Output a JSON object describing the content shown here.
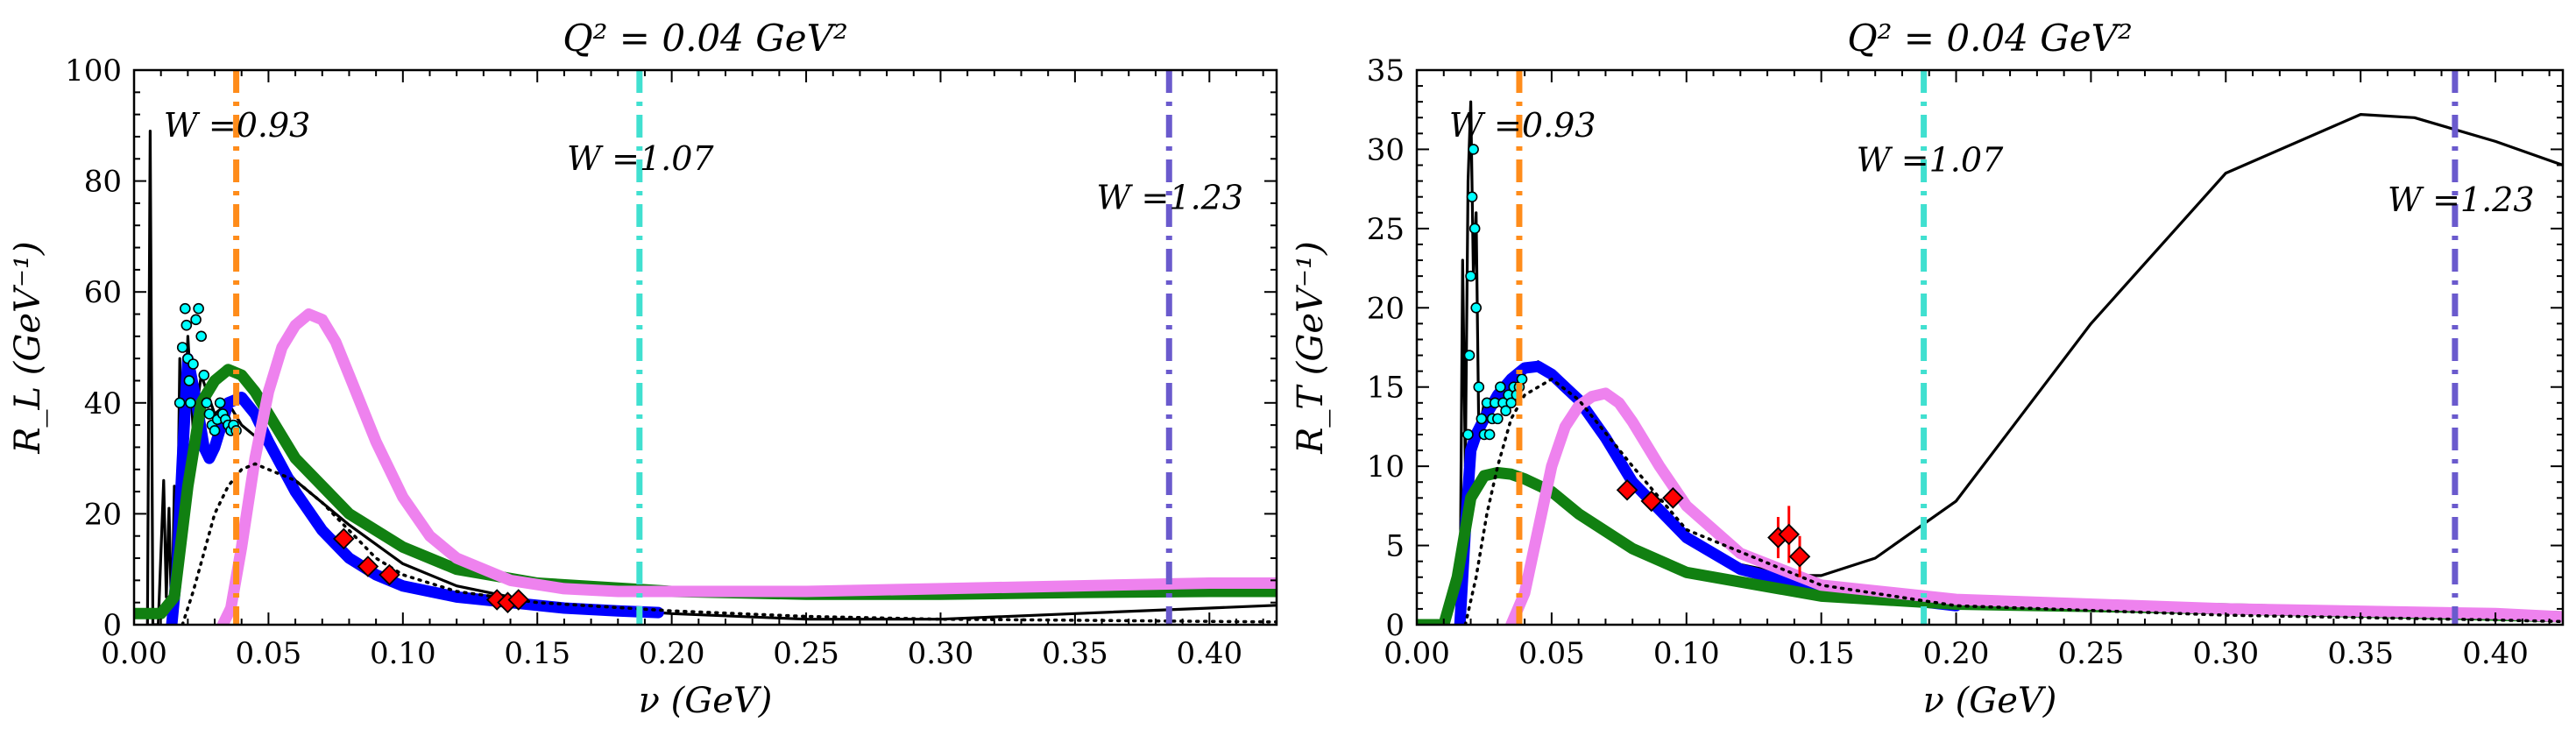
{
  "colors": {
    "orange": "#ff8c1a",
    "turquoise": "#40e0d0",
    "slateblue": "#6a5acd",
    "blue": "#0000ff",
    "green": "#118011",
    "violet": "#ee82ee",
    "cyan_marker": "#00ffff",
    "red_marker": "#ff0000",
    "black": "#000000"
  },
  "chart_data": [
    {
      "type": "line",
      "title": "Q² = 0.04 GeV²",
      "xlabel": "ν (GeV)",
      "ylabel": "R_L (GeV⁻¹)",
      "xlim": [
        0.0,
        0.425
      ],
      "ylim": [
        0,
        100
      ],
      "xticks": [
        0.0,
        0.05,
        0.1,
        0.15,
        0.2,
        0.25,
        0.3,
        0.35,
        0.4
      ],
      "xtick_labels": [
        "0.00",
        "0.05",
        "0.10",
        "0.15",
        "0.20",
        "0.25",
        "0.30",
        "0.35",
        "0.40"
      ],
      "yticks": [
        0,
        20,
        40,
        60,
        80,
        100
      ],
      "ytick_labels": [
        "0",
        "20",
        "40",
        "60",
        "80",
        "100"
      ],
      "vlines": [
        {
          "x": 0.038,
          "color": "orange",
          "label": "W =0.93",
          "label_x": 0.011,
          "label_y": 88
        },
        {
          "x": 0.188,
          "color": "turquoise",
          "label": "W =1.07",
          "label_x": 0.161,
          "label_y": 82
        },
        {
          "x": 0.385,
          "color": "slateblue",
          "label": "W =1.23",
          "label_x": 0.358,
          "label_y": 75
        }
      ],
      "series": [
        {
          "style": "black-thin",
          "x": [
            0.005,
            0.006,
            0.007,
            0.009,
            0.011,
            0.012,
            0.013,
            0.014,
            0.015,
            0.016,
            0.017,
            0.018,
            0.02,
            0.022,
            0.025,
            0.03,
            0.035,
            0.04,
            0.05,
            0.06,
            0.08,
            0.1,
            0.12,
            0.15,
            0.2,
            0.25,
            0.3,
            0.35,
            0.4,
            0.425
          ],
          "y": [
            0,
            89,
            0,
            0,
            26,
            5,
            21,
            0,
            25,
            10,
            48,
            22,
            52,
            35,
            45,
            38,
            40,
            36,
            32,
            26,
            18,
            11,
            7,
            4,
            2,
            1,
            1,
            2,
            3,
            3.5
          ]
        },
        {
          "style": "blue-thick",
          "x": [
            0.014,
            0.016,
            0.018,
            0.02,
            0.022,
            0.024,
            0.026,
            0.028,
            0.03,
            0.035,
            0.04,
            0.045,
            0.05,
            0.06,
            0.07,
            0.08,
            0.09,
            0.1,
            0.12,
            0.14,
            0.16,
            0.18,
            0.195
          ],
          "y": [
            0,
            10,
            30,
            48,
            43,
            38,
            32,
            30,
            32,
            40,
            41,
            38,
            33,
            24,
            17,
            12,
            9,
            7,
            5,
            4,
            3,
            2.5,
            2.2
          ]
        },
        {
          "style": "green-thick",
          "x": [
            0.0,
            0.01,
            0.015,
            0.02,
            0.025,
            0.03,
            0.035,
            0.04,
            0.045,
            0.05,
            0.06,
            0.08,
            0.1,
            0.12,
            0.15,
            0.2,
            0.25,
            0.3,
            0.35,
            0.4,
            0.425
          ],
          "y": [
            2,
            2,
            5,
            25,
            40,
            44,
            46,
            45,
            42,
            38,
            30,
            20,
            14,
            10,
            7.5,
            6,
            5.5,
            5.5,
            5.8,
            6,
            6
          ]
        },
        {
          "style": "violet-thick",
          "x": [
            0.033,
            0.036,
            0.04,
            0.045,
            0.05,
            0.055,
            0.06,
            0.065,
            0.07,
            0.075,
            0.08,
            0.09,
            0.1,
            0.11,
            0.12,
            0.14,
            0.16,
            0.18,
            0.2,
            0.22,
            0.25,
            0.3,
            0.35,
            0.4,
            0.425
          ],
          "y": [
            0,
            3,
            14,
            30,
            42,
            50,
            54,
            56,
            55,
            51,
            45,
            33,
            23,
            16,
            12,
            8,
            6.5,
            6,
            6,
            6,
            6,
            6.5,
            7,
            7.5,
            7.5
          ]
        },
        {
          "style": "black-dotted",
          "x": [
            0.018,
            0.022,
            0.026,
            0.03,
            0.035,
            0.04,
            0.045,
            0.05,
            0.06,
            0.07,
            0.08,
            0.09,
            0.1,
            0.12,
            0.15,
            0.2,
            0.25,
            0.3,
            0.35,
            0.4,
            0.425
          ],
          "y": [
            0,
            6,
            13,
            20,
            25,
            28,
            29,
            28,
            26,
            22,
            17,
            12,
            9,
            6,
            4,
            2.5,
            1.5,
            1,
            0.8,
            0.6,
            0.5
          ]
        }
      ],
      "cyan_points": {
        "x": [
          0.017,
          0.018,
          0.019,
          0.0195,
          0.02,
          0.0205,
          0.021,
          0.022,
          0.023,
          0.024,
          0.025,
          0.026,
          0.027,
          0.028,
          0.029,
          0.03,
          0.031,
          0.032,
          0.033,
          0.034,
          0.035,
          0.036,
          0.037,
          0.038
        ],
        "y": [
          40,
          50,
          57,
          54,
          48,
          44,
          40,
          47,
          55,
          57,
          52,
          45,
          40,
          38,
          36,
          35,
          37,
          40,
          38,
          37,
          36,
          35,
          36,
          35
        ]
      },
      "red_points": {
        "x": [
          0.078,
          0.087,
          0.095,
          0.135,
          0.139,
          0.143
        ],
        "y": [
          15.5,
          10.5,
          9,
          4.5,
          4,
          4.5
        ]
      }
    },
    {
      "type": "line",
      "title": "Q² = 0.04 GeV²",
      "xlabel": "ν (GeV)",
      "ylabel": "R_T (GeV⁻¹)",
      "xlim": [
        0.0,
        0.425
      ],
      "ylim": [
        0,
        35
      ],
      "xticks": [
        0.0,
        0.05,
        0.1,
        0.15,
        0.2,
        0.25,
        0.3,
        0.35,
        0.4
      ],
      "xtick_labels": [
        "0.00",
        "0.05",
        "0.10",
        "0.15",
        "0.20",
        "0.25",
        "0.30",
        "0.35",
        "0.40"
      ],
      "yticks": [
        0,
        5,
        10,
        15,
        20,
        25,
        30,
        35
      ],
      "ytick_labels": [
        "0",
        "5",
        "10",
        "15",
        "20",
        "25",
        "30",
        "35"
      ],
      "vlines": [
        {
          "x": 0.038,
          "color": "orange",
          "label": "W =0.93",
          "label_x": 0.012,
          "label_y": 30.8
        },
        {
          "x": 0.188,
          "color": "turquoise",
          "label": "W =1.07",
          "label_x": 0.163,
          "label_y": 28.6
        },
        {
          "x": 0.385,
          "color": "slateblue",
          "label": "W =1.23",
          "label_x": 0.36,
          "label_y": 26.1
        }
      ],
      "series": [
        {
          "style": "black-thin",
          "x": [
            0.016,
            0.017,
            0.018,
            0.019,
            0.02,
            0.021,
            0.022,
            0.023,
            0.025,
            0.03,
            0.035,
            0.04,
            0.045,
            0.05,
            0.06,
            0.08,
            0.1,
            0.12,
            0.14,
            0.15,
            0.17,
            0.2,
            0.25,
            0.3,
            0.35,
            0.37,
            0.4,
            0.425
          ],
          "y": [
            0,
            23,
            10,
            28,
            33,
            22,
            26,
            12,
            14,
            14,
            15,
            16,
            16.6,
            16,
            14,
            9,
            5.5,
            3.8,
            3.1,
            3.1,
            4.2,
            7.8,
            19,
            28.5,
            32.2,
            32,
            30.5,
            29
          ]
        },
        {
          "style": "blue-thick",
          "x": [
            0.016,
            0.018,
            0.02,
            0.022,
            0.025,
            0.03,
            0.035,
            0.04,
            0.045,
            0.05,
            0.06,
            0.07,
            0.08,
            0.1,
            0.12,
            0.15,
            0.2
          ],
          "y": [
            0,
            6,
            11,
            12,
            13,
            14.5,
            15.5,
            16.2,
            16.3,
            15.8,
            14.2,
            11.8,
            9,
            5.5,
            3.5,
            2.2,
            1.2
          ]
        },
        {
          "style": "green-thick",
          "x": [
            0.0,
            0.01,
            0.015,
            0.02,
            0.025,
            0.03,
            0.035,
            0.04,
            0.05,
            0.06,
            0.08,
            0.1,
            0.15,
            0.2,
            0.3,
            0.4,
            0.425
          ],
          "y": [
            0,
            0,
            3,
            8,
            9.4,
            9.6,
            9.5,
            9.2,
            8.4,
            7,
            4.8,
            3.3,
            1.8,
            1.3,
            1,
            0.6,
            0.5
          ]
        },
        {
          "style": "violet-thick",
          "x": [
            0.035,
            0.04,
            0.045,
            0.05,
            0.055,
            0.06,
            0.065,
            0.07,
            0.075,
            0.08,
            0.09,
            0.1,
            0.12,
            0.15,
            0.2,
            0.3,
            0.4,
            0.425
          ],
          "y": [
            0,
            2,
            6,
            10,
            12.5,
            13.8,
            14.4,
            14.6,
            14,
            12.8,
            10,
            7.5,
            4.5,
            2.5,
            1.6,
            1,
            0.7,
            0.5
          ]
        },
        {
          "style": "black-dotted",
          "x": [
            0.018,
            0.022,
            0.026,
            0.03,
            0.035,
            0.04,
            0.05,
            0.06,
            0.08,
            0.1,
            0.15,
            0.2,
            0.3,
            0.4,
            0.425
          ],
          "y": [
            0,
            3,
            7,
            10,
            13,
            14.5,
            15.5,
            14.2,
            10,
            6,
            2.5,
            1.2,
            0.6,
            0.3,
            0.2
          ]
        }
      ],
      "cyan_points": {
        "x": [
          0.019,
          0.0195,
          0.02,
          0.0205,
          0.021,
          0.0215,
          0.022,
          0.023,
          0.024,
          0.025,
          0.026,
          0.027,
          0.028,
          0.029,
          0.03,
          0.031,
          0.032,
          0.033,
          0.034,
          0.035,
          0.036,
          0.037,
          0.038,
          0.039
        ],
        "y": [
          12,
          17,
          22,
          27,
          30,
          25,
          20,
          15,
          13,
          12,
          14,
          12,
          13,
          14,
          13,
          15,
          14,
          13.5,
          14.5,
          14,
          15,
          14.5,
          15,
          15.5
        ]
      },
      "red_points": {
        "x": [
          0.078,
          0.087,
          0.095,
          0.134,
          0.138,
          0.142
        ],
        "y": [
          8.5,
          7.8,
          8,
          5.5,
          5.7,
          4.3
        ]
      },
      "red_errors": [
        0,
        0,
        0,
        1.3,
        1.8,
        1.3
      ]
    }
  ]
}
